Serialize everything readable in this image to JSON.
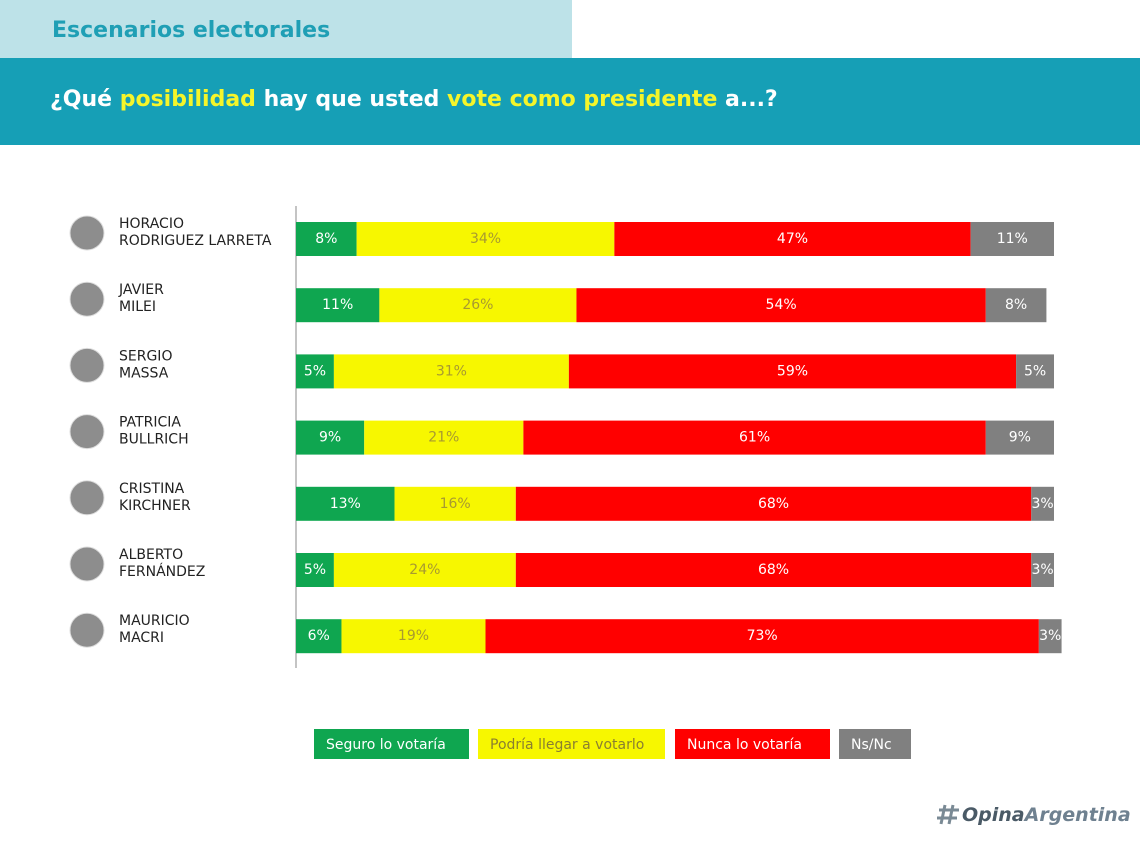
{
  "header": {
    "section": "Escenarios electorales",
    "question": [
      {
        "text": "¿Qué ",
        "color": "#ffffff"
      },
      {
        "text": "posibilidad",
        "color": "#f5f52a"
      },
      {
        "text": " hay que usted ",
        "color": "#ffffff"
      },
      {
        "text": "vote como presidente",
        "color": "#f5f52a"
      },
      {
        "text": " a...?",
        "color": "#ffffff"
      }
    ]
  },
  "chart_data": {
    "type": "stacked-bar-horizontal",
    "categories": [
      [
        "HORACIO",
        "RODRIGUEZ LARRETA"
      ],
      [
        "JAVIER",
        "MILEI"
      ],
      [
        "SERGIO",
        "MASSA"
      ],
      [
        "PATRICIA",
        "BULLRICH"
      ],
      [
        "CRISTINA",
        "KIRCHNER"
      ],
      [
        "ALBERTO",
        "FERNÁNDEZ"
      ],
      [
        "MAURICIO",
        "MACRI"
      ]
    ],
    "xlim": [
      0,
      100
    ],
    "series": [
      {
        "name": "Seguro lo votaría",
        "color": "#0fa650",
        "label_color": "#ffffff",
        "values": [
          8,
          11,
          5,
          9,
          13,
          5,
          6
        ],
        "value_labels": [
          "8%",
          "11%",
          "5%",
          "9%",
          "13%",
          "5%",
          "6%"
        ]
      },
      {
        "name": "Podría llegar a votarlo",
        "color": "#f7f700",
        "label_color": "#a89a30",
        "values": [
          34,
          26,
          31,
          21,
          16,
          24,
          19
        ],
        "value_labels": [
          "34%",
          "26%",
          "31%",
          "21%",
          "16%",
          "24%",
          "19%"
        ]
      },
      {
        "name": "Nunca lo votaría",
        "color": "#ff0000",
        "label_color": "#ffffff",
        "values": [
          47,
          54,
          59,
          61,
          68,
          68,
          73
        ],
        "value_labels": [
          "47%",
          "54%",
          "59%",
          "61%",
          "68%",
          "68%",
          "73%"
        ]
      },
      {
        "name": "Ns/Nc",
        "color": "#808080",
        "label_color": "#ffffff",
        "values": [
          11,
          8,
          5,
          9,
          3,
          3,
          3
        ],
        "value_labels": [
          "11%",
          "8%",
          "5%",
          "9%",
          "3%",
          "3%",
          "3%"
        ]
      }
    ]
  },
  "logo": [
    "Opina",
    "Argentina"
  ]
}
